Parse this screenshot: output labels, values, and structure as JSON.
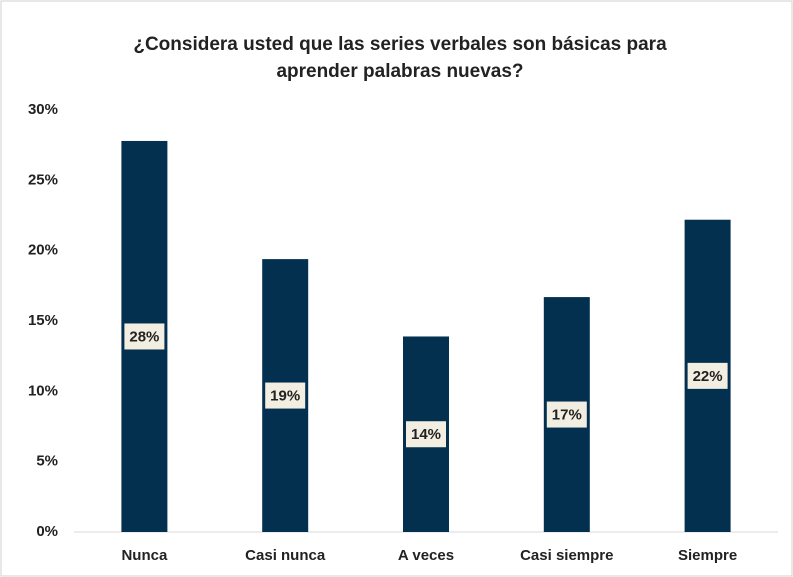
{
  "chart_data": {
    "type": "bar",
    "title": [
      "¿Considera usted que las series verbales son básicas para",
      "aprender palabras nuevas?"
    ],
    "categories": [
      "Nunca",
      "Casi nunca",
      "A veces",
      "Casi siempre",
      "Siempre"
    ],
    "values": [
      27.8,
      19.4,
      13.9,
      16.7,
      22.2
    ],
    "value_labels": [
      "28%",
      "19%",
      "14%",
      "17%",
      "22%"
    ],
    "color": "#04304f",
    "ylim": [
      0,
      30
    ],
    "yticks": [
      {
        "value": 0,
        "label": "0%"
      },
      {
        "value": 5,
        "label": "5%"
      },
      {
        "value": 10,
        "label": "10%"
      },
      {
        "value": 15,
        "label": "15%"
      },
      {
        "value": 20,
        "label": "20%"
      },
      {
        "value": 25,
        "label": "25%"
      },
      {
        "value": 30,
        "label": "30%"
      }
    ],
    "grid": false
  }
}
